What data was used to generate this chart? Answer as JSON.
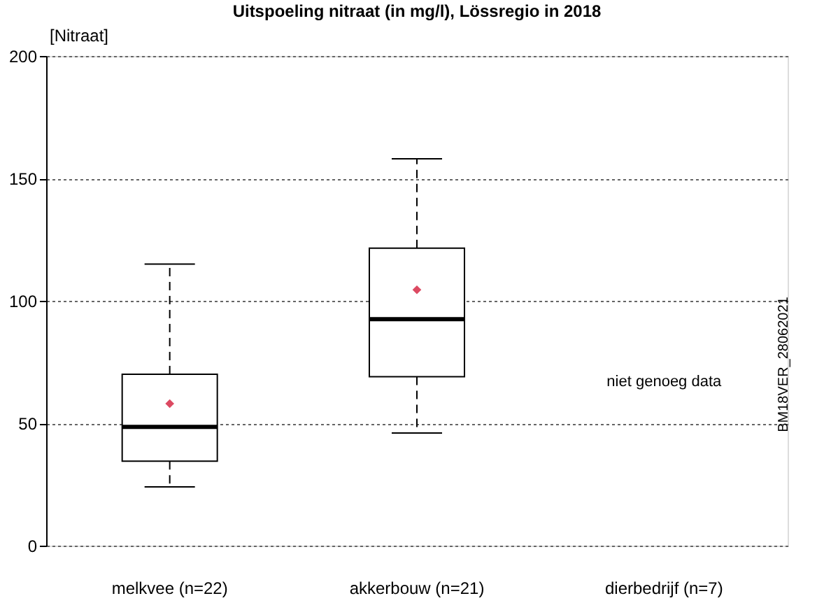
{
  "chart_data": {
    "type": "box",
    "title": "Uitspoeling nitraat (in mg/l), Lössregio in 2018",
    "ylabel": "[Nitraat]",
    "categories": [
      "melkvee (n=22)",
      "akkerbouw (n=21)",
      "dierbedrijf (n=7)"
    ],
    "boxes": [
      {
        "low": 24,
        "q1": 34.5,
        "median": 48.5,
        "q3": 70,
        "high": 115
      },
      {
        "low": 46,
        "q1": 69,
        "median": 92.5,
        "q3": 121.5,
        "high": 158
      },
      null
    ],
    "series": [
      {
        "type": "scatter",
        "color": "#dc4a62",
        "marker": "diamond",
        "x": [
          "melkvee (n=22)",
          "akkerbouw (n=21)"
        ],
        "values": [
          58,
          104.5
        ]
      }
    ],
    "ylim": [
      0,
      200
    ],
    "yticks": [
      0,
      50,
      100,
      150,
      200
    ],
    "grid": "y",
    "annotations": [
      "niet genoeg data",
      "BM18VER_28062021"
    ]
  }
}
